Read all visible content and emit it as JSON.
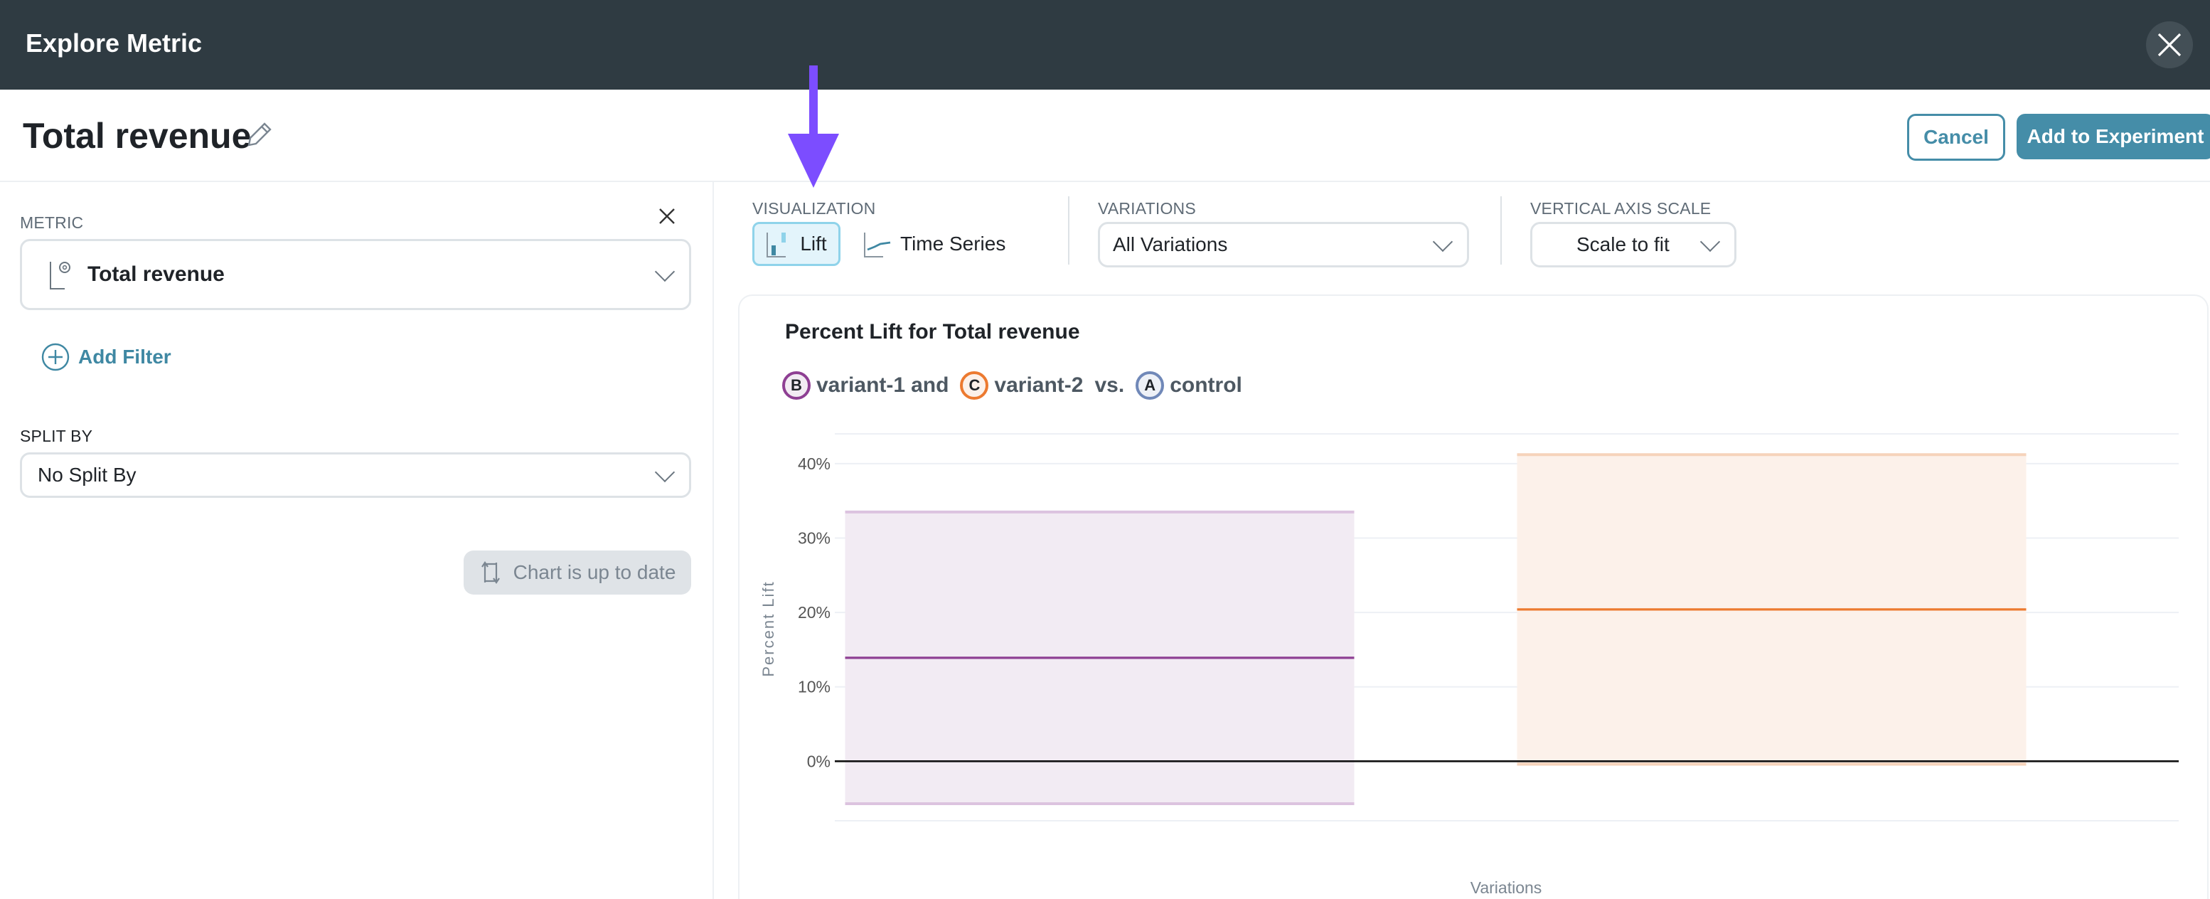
{
  "header": {
    "title": "Explore Metric",
    "close_icon": "close-icon"
  },
  "title_row": {
    "title": "Total revenue",
    "cancel_label": "Cancel",
    "add_label": "Add to Experiment"
  },
  "left_panel": {
    "metric_label": "METRIC",
    "metric_value": "Total revenue",
    "add_filter_label": "Add Filter",
    "split_by_label": "SPLIT BY",
    "split_by_value": "No Split By",
    "refresh_label": "Chart is up to date"
  },
  "controls": {
    "visualization_label": "VISUALIZATION",
    "lift_label": "Lift",
    "time_series_label": "Time Series",
    "variations_label": "VARIATIONS",
    "variations_value": "All Variations",
    "axis_scale_label": "VERTICAL AXIS SCALE",
    "axis_scale_value": "Scale to fit"
  },
  "legend": {
    "b_letter": "B",
    "b_name": "variant-1",
    "and": "and",
    "c_letter": "C",
    "c_name": "variant-2",
    "vs": "vs.",
    "a_letter": "A",
    "a_name": "control"
  },
  "colors": {
    "accent": "#458da8",
    "variant_b": "#8e3f93",
    "variant_c": "#ec7a30",
    "control": "#7088b8",
    "annotation": "#7c4dff"
  },
  "chart_data": {
    "type": "interval",
    "title": "Percent Lift for Total revenue",
    "xlabel": "Variations",
    "ylabel": "Percent Lift",
    "ylim": [
      -8,
      44
    ],
    "yticks": [
      0,
      10,
      20,
      30,
      40
    ],
    "ytick_labels": [
      "0%",
      "10%",
      "20%",
      "30%",
      "40%"
    ],
    "grid": true,
    "series": [
      {
        "name": "variant-1",
        "letter": "B",
        "lift": 13.9,
        "lower": -5.7,
        "upper": 33.5,
        "color": "#8e3f93",
        "fill": "#f2ebf3",
        "edge": "#dcc3df"
      },
      {
        "name": "variant-2",
        "letter": "C",
        "lift": 20.4,
        "lower": -0.4,
        "upper": 41.2,
        "color": "#ec7a30",
        "fill": "#fcf1ea",
        "edge": "#f6d3bb"
      }
    ]
  }
}
